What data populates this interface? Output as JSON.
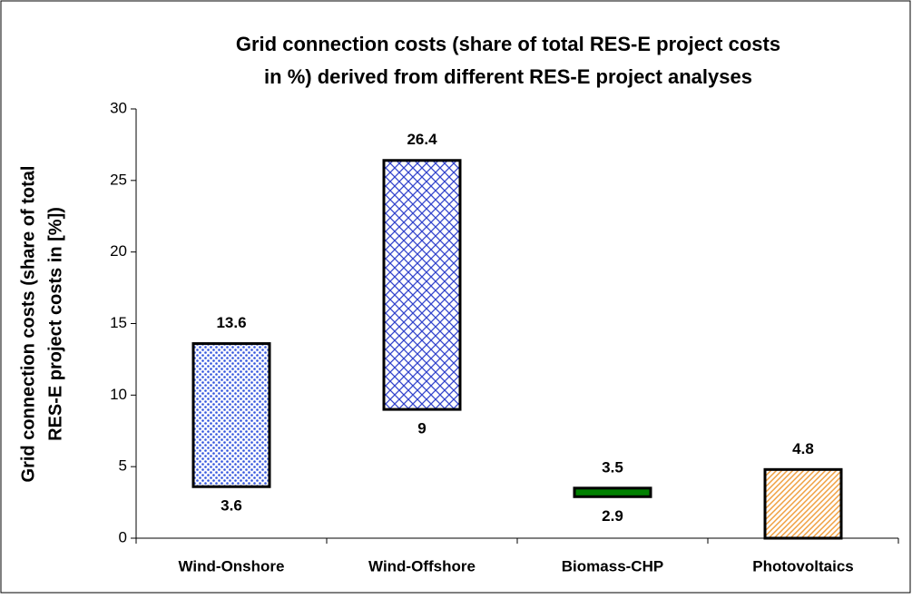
{
  "chart_data": {
    "type": "floating-bar",
    "title": [
      "Grid connection costs (share of total RES-E project costs",
      "in %) derived from different RES-E project analyses"
    ],
    "title_color": "#008000",
    "y_label": [
      "Grid connection costs (share of total",
      "RES-E project costs in [%])"
    ],
    "categories": [
      "Wind-Onshore",
      "Wind-Offshore",
      "Biomass-CHP",
      "Photovoltaics"
    ],
    "low": [
      3.6,
      9,
      2.9,
      0
    ],
    "high": [
      13.6,
      26.4,
      3.5,
      4.8
    ],
    "low_labels": [
      "3.6",
      "9",
      "2.9",
      null
    ],
    "colors": [
      "#3355dd",
      "#3344cc",
      "#008000",
      "#f0a040"
    ],
    "patterns": [
      "dots",
      "crosshatch",
      "solid",
      "diagonal"
    ],
    "ylim": [
      0,
      30
    ],
    "yticks": [
      0,
      5,
      10,
      15,
      20,
      25,
      30
    ]
  }
}
